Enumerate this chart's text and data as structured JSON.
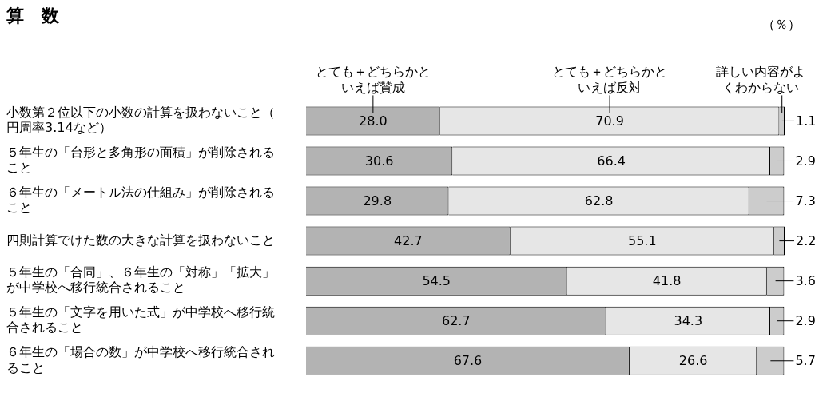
{
  "chart_data": {
    "type": "bar",
    "orientation": "horizontal",
    "stacked": true,
    "title": "算　数",
    "annotations": [
      "（％）"
    ],
    "categories": [
      "小数第２位以下の小数の計算を扱わないこと（円周率3.14など）",
      "５年生の「台形と多角形の面積」が削除されること",
      "６年生の「メートル法の仕組み」が削除されること",
      "四則計算でけた数の大きな計算を扱わないこと",
      "５年生の「合同」、６年生の「対称」「拡大」が中学校へ移行統合されること",
      "５年生の「文字を用いた式」が中学校へ移行統合されること",
      "６年生の「場合の数」が中学校へ移行統合されること"
    ],
    "series": [
      {
        "name": "とても＋どちらかといえば賛成",
        "color": "#b3b3b3",
        "values": [
          28.0,
          30.6,
          29.8,
          42.7,
          54.5,
          62.7,
          67.6
        ],
        "value_labels": [
          "28.0",
          "30.6",
          "29.8",
          "42.7",
          "54.5",
          "62.7",
          "67.6"
        ]
      },
      {
        "name": "とても＋どちらかといえば反対",
        "color": "#e6e6e6",
        "values": [
          70.9,
          66.4,
          62.8,
          55.1,
          41.8,
          34.3,
          26.6
        ],
        "value_labels": [
          "70.9",
          "66.4",
          "62.8",
          "55.1",
          "41.8",
          "34.3",
          "26.6"
        ]
      },
      {
        "name": "詳しい内容がよくわからない",
        "color": "#cccccc",
        "values": [
          1.1,
          2.9,
          7.3,
          2.2,
          3.6,
          2.9,
          5.7
        ],
        "value_labels": [
          "1.1",
          "2.9",
          "7.3",
          "2.2",
          "3.6",
          "2.9",
          "5.7"
        ]
      }
    ],
    "xlim": [
      0,
      100
    ],
    "tick_labels": "y",
    "legend": false
  }
}
